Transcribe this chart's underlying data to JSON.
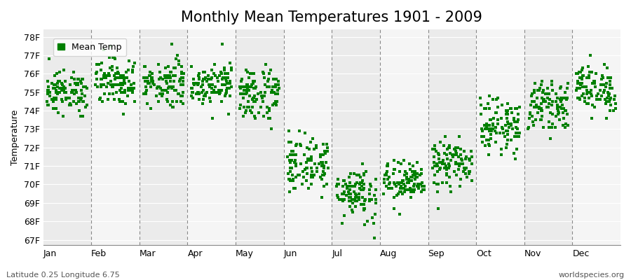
{
  "title": "Monthly Mean Temperatures 1901 - 2009",
  "ylabel": "Temperature",
  "xlabel_bottom_left": "Latitude 0.25 Longitude 6.75",
  "xlabel_bottom_right": "worldspecies.org",
  "legend_label": "Mean Temp",
  "months": [
    "Jan",
    "Feb",
    "Mar",
    "Apr",
    "May",
    "Jun",
    "Jul",
    "Aug",
    "Sep",
    "Oct",
    "Nov",
    "Dec"
  ],
  "ytick_labels": [
    "67F",
    "68F",
    "69F",
    "70F",
    "71F",
    "72F",
    "73F",
    "74F",
    "75F",
    "76F",
    "77F",
    "78F"
  ],
  "ytick_values": [
    67,
    68,
    69,
    70,
    71,
    72,
    73,
    74,
    75,
    76,
    77,
    78
  ],
  "ylim": [
    66.7,
    78.4
  ],
  "dot_color": "#008000",
  "dot_size": 6,
  "background_color": "#ffffff",
  "plot_bg_color": "#ffffff",
  "band_color_odd": "#ebebeb",
  "band_color_even": "#f5f5f5",
  "dashed_line_color": "#888888",
  "title_fontsize": 15,
  "label_fontsize": 9,
  "tick_fontsize": 9,
  "monthly_means": [
    75.0,
    75.6,
    75.5,
    75.5,
    74.9,
    71.1,
    69.6,
    70.1,
    71.1,
    73.2,
    74.3,
    75.2
  ],
  "monthly_stds": [
    0.55,
    0.65,
    0.65,
    0.55,
    0.75,
    0.75,
    0.75,
    0.55,
    0.65,
    0.7,
    0.6,
    0.65
  ],
  "n_years": 109
}
